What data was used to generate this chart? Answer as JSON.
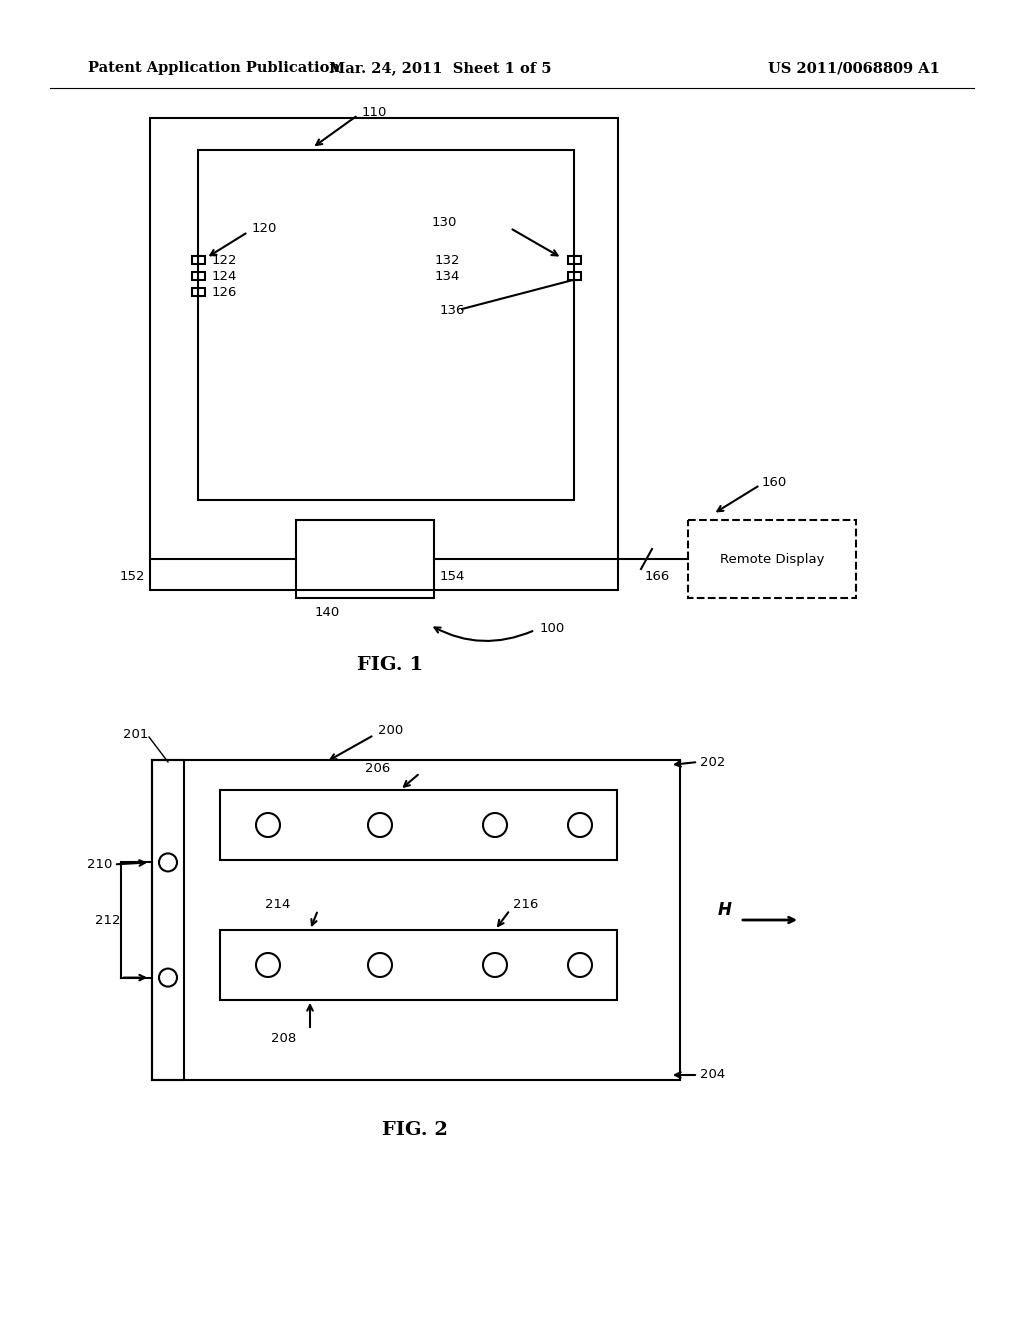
{
  "bg_color": "#ffffff",
  "line_color": "#000000",
  "header_left": "Patent Application Publication",
  "header_mid": "Mar. 24, 2011  Sheet 1 of 5",
  "header_right": "US 2011/0068809 A1",
  "fig1_label": "FIG. 1",
  "fig2_label": "FIG. 2",
  "font_size_header": 10.5,
  "font_size_label": 14,
  "font_size_ref": 9.5
}
